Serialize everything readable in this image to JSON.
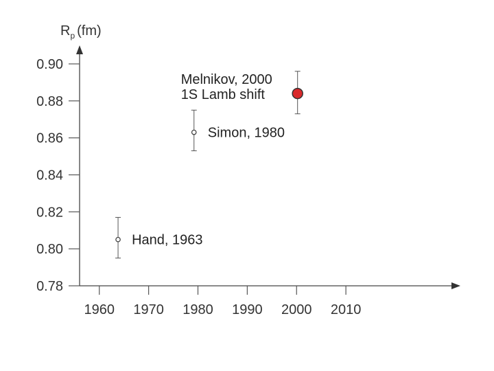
{
  "chart_data": {
    "type": "scatter",
    "ylabel": "R",
    "ylabel_subscript": "p",
    "ylabel_unit": "(fm)",
    "xlabel": "",
    "xlim": [
      1956,
      2020
    ],
    "ylim": [
      0.78,
      0.9
    ],
    "x_ticks": [
      1960,
      1970,
      1980,
      1990,
      2000,
      2010
    ],
    "y_ticks": [
      "0.90",
      "0.88",
      "0.86",
      "0.84",
      "0.82",
      "0.80",
      "0.78"
    ],
    "grid": false,
    "points": [
      {
        "x": 1963.8,
        "y": 0.805,
        "err_low": 0.795,
        "err_high": 0.817,
        "lines": [
          "Hand,  1963"
        ],
        "color": "#333333",
        "filled": false
      },
      {
        "x": 1979.2,
        "y": 0.863,
        "err_low": 0.853,
        "err_high": 0.875,
        "lines": [
          "Simon, 1980"
        ],
        "color": "#333333",
        "filled": false
      },
      {
        "x": 2000.2,
        "y": 0.884,
        "err_low": 0.873,
        "err_high": 0.896,
        "lines": [
          "Melnikov, 2000",
          "1S Lamb shift"
        ],
        "color": "#d9292b",
        "filled": true
      }
    ]
  }
}
